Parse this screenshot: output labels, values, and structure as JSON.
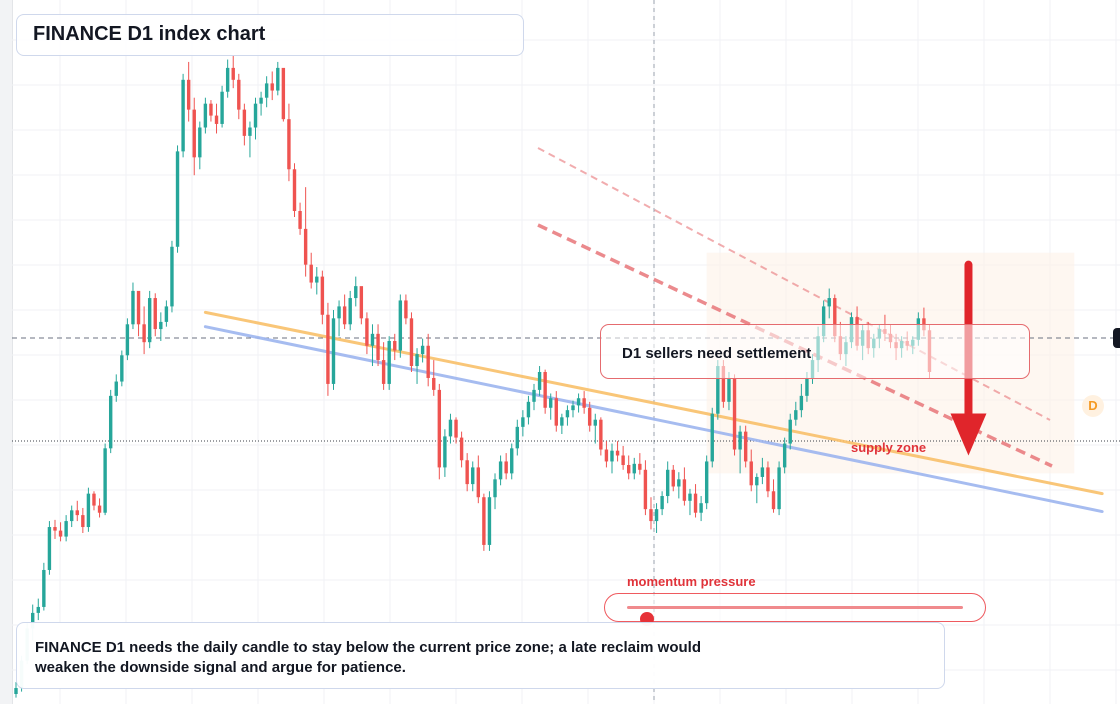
{
  "title": "FINANCE D1 index chart",
  "callout": "D1 sellers need settlement",
  "supply_label": "supply zone",
  "momentum": {
    "label": "momentum pressure",
    "level": 0.06
  },
  "badge": "D",
  "note": "FINANCE D1 needs the daily candle to stay below the current price zone; a late reclaim would weaken the downside signal and argue for patience.",
  "colors": {
    "up": "#26a69a",
    "down": "#ef5350",
    "trend_orange": "#f9c06a",
    "trend_blue": "#9db5ef",
    "dashed_red": "#e8767a",
    "arrow": "#e0252b"
  },
  "chart_data": {
    "type": "candlestick",
    "title": "FINANCE D1 index chart",
    "timeframe": "D1",
    "candles_ohlc": [
      [
        0.6,
        0.7,
        0.57,
        0.65
      ],
      [
        0.65,
        0.92,
        0.62,
        0.88
      ],
      [
        0.88,
        1.2,
        0.85,
        1.15
      ],
      [
        1.15,
        1.35,
        1.05,
        1.28
      ],
      [
        1.28,
        1.4,
        1.22,
        1.33
      ],
      [
        1.33,
        1.7,
        1.3,
        1.64
      ],
      [
        1.64,
        2.05,
        1.6,
        2.0
      ],
      [
        2.0,
        2.06,
        1.9,
        1.97
      ],
      [
        1.97,
        2.04,
        1.88,
        1.92
      ],
      [
        1.92,
        2.1,
        1.88,
        2.05
      ],
      [
        2.05,
        2.18,
        2.0,
        2.14
      ],
      [
        2.14,
        2.22,
        2.05,
        2.1
      ],
      [
        2.1,
        2.16,
        1.95,
        2.0
      ],
      [
        2.0,
        2.33,
        1.96,
        2.28
      ],
      [
        2.28,
        2.3,
        2.14,
        2.18
      ],
      [
        2.18,
        2.24,
        2.08,
        2.12
      ],
      [
        2.12,
        2.7,
        2.1,
        2.66
      ],
      [
        2.66,
        3.15,
        2.62,
        3.1
      ],
      [
        3.1,
        3.28,
        3.05,
        3.22
      ],
      [
        3.22,
        3.48,
        3.18,
        3.44
      ],
      [
        3.44,
        3.75,
        3.4,
        3.7
      ],
      [
        3.7,
        4.05,
        3.66,
        3.98
      ],
      [
        3.98,
        3.92,
        3.6,
        3.7
      ],
      [
        3.7,
        3.85,
        3.45,
        3.55
      ],
      [
        3.55,
        3.98,
        3.5,
        3.92
      ],
      [
        3.92,
        3.96,
        3.6,
        3.66
      ],
      [
        3.66,
        3.8,
        3.56,
        3.72
      ],
      [
        3.72,
        3.9,
        3.68,
        3.85
      ],
      [
        3.85,
        4.4,
        3.8,
        4.35
      ],
      [
        4.35,
        5.2,
        4.3,
        5.15
      ],
      [
        5.15,
        5.8,
        5.1,
        5.75
      ],
      [
        5.75,
        5.9,
        5.4,
        5.5
      ],
      [
        5.5,
        5.6,
        4.95,
        5.1
      ],
      [
        5.1,
        5.4,
        5.0,
        5.35
      ],
      [
        5.35,
        5.6,
        5.3,
        5.55
      ],
      [
        5.55,
        5.58,
        5.4,
        5.45
      ],
      [
        5.45,
        5.55,
        5.3,
        5.38
      ],
      [
        5.38,
        5.7,
        5.35,
        5.65
      ],
      [
        5.65,
        5.92,
        5.6,
        5.85
      ],
      [
        5.85,
        5.95,
        5.68,
        5.75
      ],
      [
        5.75,
        5.8,
        5.42,
        5.5
      ],
      [
        5.5,
        5.55,
        5.2,
        5.28
      ],
      [
        5.28,
        5.4,
        5.1,
        5.35
      ],
      [
        5.35,
        5.6,
        5.25,
        5.55
      ],
      [
        5.55,
        5.65,
        5.45,
        5.6
      ],
      [
        5.6,
        5.78,
        5.52,
        5.72
      ],
      [
        5.72,
        5.82,
        5.58,
        5.66
      ],
      [
        5.66,
        5.9,
        5.62,
        5.85
      ],
      [
        5.85,
        5.8,
        5.4,
        5.42
      ],
      [
        5.42,
        5.55,
        4.9,
        5.0
      ],
      [
        5.0,
        5.05,
        4.6,
        4.65
      ],
      [
        4.65,
        4.72,
        4.45,
        4.5
      ],
      [
        4.5,
        4.85,
        4.1,
        4.2
      ],
      [
        4.2,
        4.3,
        4.0,
        4.05
      ],
      [
        4.05,
        4.18,
        3.95,
        4.1
      ],
      [
        4.1,
        4.15,
        3.7,
        3.78
      ],
      [
        3.78,
        3.88,
        3.1,
        3.2
      ],
      [
        3.2,
        3.82,
        3.15,
        3.75
      ],
      [
        3.75,
        3.9,
        3.6,
        3.85
      ],
      [
        3.85,
        3.95,
        3.66,
        3.7
      ],
      [
        3.7,
        3.98,
        3.65,
        3.92
      ],
      [
        3.92,
        4.1,
        3.85,
        4.02
      ],
      [
        4.02,
        4.0,
        3.7,
        3.75
      ],
      [
        3.75,
        3.8,
        3.45,
        3.52
      ],
      [
        3.52,
        3.7,
        3.35,
        3.62
      ],
      [
        3.62,
        3.7,
        3.35,
        3.4
      ],
      [
        3.4,
        3.55,
        3.15,
        3.2
      ],
      [
        3.2,
        3.6,
        3.15,
        3.56
      ],
      [
        3.56,
        3.62,
        3.4,
        3.48
      ],
      [
        3.48,
        3.95,
        3.42,
        3.9
      ],
      [
        3.9,
        3.95,
        3.7,
        3.75
      ],
      [
        3.75,
        3.8,
        3.3,
        3.35
      ],
      [
        3.35,
        3.5,
        3.2,
        3.45
      ],
      [
        3.45,
        3.58,
        3.38,
        3.52
      ],
      [
        3.52,
        3.62,
        3.18,
        3.25
      ],
      [
        3.25,
        3.4,
        3.1,
        3.15
      ],
      [
        3.15,
        3.2,
        2.4,
        2.5
      ],
      [
        2.5,
        2.82,
        2.42,
        2.76
      ],
      [
        2.76,
        2.95,
        2.7,
        2.9
      ],
      [
        2.9,
        2.92,
        2.7,
        2.75
      ],
      [
        2.75,
        2.8,
        2.5,
        2.56
      ],
      [
        2.56,
        2.62,
        2.3,
        2.36
      ],
      [
        2.36,
        2.55,
        2.3,
        2.5
      ],
      [
        2.5,
        2.6,
        2.2,
        2.25
      ],
      [
        2.25,
        2.28,
        1.8,
        1.85
      ],
      [
        1.85,
        2.3,
        1.8,
        2.25
      ],
      [
        2.25,
        2.45,
        2.15,
        2.4
      ],
      [
        2.4,
        2.6,
        2.35,
        2.55
      ],
      [
        2.55,
        2.62,
        2.4,
        2.45
      ],
      [
        2.45,
        2.7,
        2.4,
        2.66
      ],
      [
        2.66,
        2.9,
        2.6,
        2.84
      ],
      [
        2.84,
        2.98,
        2.76,
        2.92
      ],
      [
        2.92,
        3.1,
        2.86,
        3.05
      ],
      [
        3.05,
        3.2,
        2.98,
        3.15
      ],
      [
        3.15,
        3.35,
        3.1,
        3.3
      ],
      [
        3.3,
        3.32,
        2.95,
        3.0
      ],
      [
        3.0,
        3.12,
        2.9,
        3.08
      ],
      [
        3.08,
        3.14,
        2.8,
        2.85
      ],
      [
        2.85,
        2.95,
        2.78,
        2.92
      ],
      [
        2.92,
        3.02,
        2.85,
        2.98
      ],
      [
        2.98,
        3.06,
        2.92,
        3.02
      ],
      [
        3.02,
        3.12,
        2.96,
        3.08
      ],
      [
        3.08,
        3.14,
        2.95,
        3.0
      ],
      [
        3.0,
        3.05,
        2.8,
        2.85
      ],
      [
        2.85,
        2.95,
        2.7,
        2.9
      ],
      [
        2.9,
        2.92,
        2.6,
        2.65
      ],
      [
        2.65,
        2.72,
        2.5,
        2.55
      ],
      [
        2.55,
        2.7,
        2.45,
        2.64
      ],
      [
        2.64,
        2.72,
        2.55,
        2.6
      ],
      [
        2.6,
        2.68,
        2.48,
        2.52
      ],
      [
        2.52,
        2.6,
        2.4,
        2.45
      ],
      [
        2.45,
        2.58,
        2.4,
        2.53
      ],
      [
        2.53,
        2.62,
        2.44,
        2.48
      ],
      [
        2.48,
        2.56,
        2.1,
        2.15
      ],
      [
        2.15,
        2.25,
        1.98,
        2.05
      ],
      [
        2.05,
        2.2,
        1.95,
        2.15
      ],
      [
        2.15,
        2.3,
        2.1,
        2.26
      ],
      [
        2.26,
        2.55,
        2.2,
        2.48
      ],
      [
        2.48,
        2.52,
        2.3,
        2.34
      ],
      [
        2.34,
        2.46,
        2.24,
        2.4
      ],
      [
        2.4,
        2.5,
        2.18,
        2.22
      ],
      [
        2.22,
        2.32,
        2.1,
        2.28
      ],
      [
        2.28,
        2.36,
        2.08,
        2.12
      ],
      [
        2.12,
        2.26,
        2.05,
        2.2
      ],
      [
        2.2,
        2.6,
        2.15,
        2.55
      ],
      [
        2.55,
        3.0,
        2.5,
        2.95
      ],
      [
        2.95,
        3.4,
        2.9,
        3.35
      ],
      [
        3.35,
        3.4,
        3.0,
        3.05
      ],
      [
        3.05,
        3.3,
        2.98,
        3.25
      ],
      [
        3.25,
        3.28,
        2.6,
        2.65
      ],
      [
        2.65,
        2.85,
        2.45,
        2.8
      ],
      [
        2.8,
        2.85,
        2.5,
        2.55
      ],
      [
        2.55,
        2.65,
        2.3,
        2.35
      ],
      [
        2.35,
        2.45,
        2.2,
        2.42
      ],
      [
        2.42,
        2.58,
        2.36,
        2.5
      ],
      [
        2.5,
        2.55,
        2.25,
        2.3
      ],
      [
        2.3,
        2.4,
        2.12,
        2.15
      ],
      [
        2.15,
        2.55,
        2.1,
        2.5
      ],
      [
        2.5,
        2.75,
        2.45,
        2.7
      ],
      [
        2.7,
        2.95,
        2.65,
        2.9
      ],
      [
        2.9,
        3.05,
        2.85,
        2.98
      ],
      [
        2.98,
        3.2,
        2.92,
        3.1
      ],
      [
        3.1,
        3.3,
        3.05,
        3.25
      ],
      [
        3.25,
        3.45,
        3.2,
        3.4
      ],
      [
        3.4,
        3.68,
        3.3,
        3.6
      ],
      [
        3.6,
        3.9,
        3.55,
        3.85
      ],
      [
        3.85,
        4.0,
        3.75,
        3.92
      ],
      [
        3.92,
        3.95,
        3.55,
        3.6
      ],
      [
        3.6,
        3.72,
        3.4,
        3.45
      ],
      [
        3.45,
        3.6,
        3.35,
        3.55
      ],
      [
        3.55,
        3.8,
        3.5,
        3.76
      ],
      [
        3.76,
        3.85,
        3.48,
        3.52
      ],
      [
        3.52,
        3.7,
        3.4,
        3.65
      ],
      [
        3.65,
        3.72,
        3.45,
        3.5
      ],
      [
        3.5,
        3.62,
        3.42,
        3.58
      ],
      [
        3.58,
        3.7,
        3.5,
        3.66
      ],
      [
        3.66,
        3.78,
        3.56,
        3.62
      ],
      [
        3.62,
        3.7,
        3.5,
        3.55
      ],
      [
        3.55,
        3.62,
        3.4,
        3.5
      ],
      [
        3.5,
        3.6,
        3.42,
        3.56
      ],
      [
        3.56,
        3.64,
        3.48,
        3.52
      ],
      [
        3.52,
        3.6,
        3.45,
        3.57
      ],
      [
        3.57,
        3.8,
        3.52,
        3.75
      ],
      [
        3.75,
        3.84,
        3.6,
        3.65
      ],
      [
        3.65,
        3.7,
        3.25,
        3.3
      ]
    ],
    "trendlines": [
      {
        "color": "orange",
        "from": [
          34,
          3.8
        ],
        "to": [
          195,
          2.28
        ]
      },
      {
        "color": "blue",
        "from": [
          34,
          3.68
        ],
        "to": [
          195,
          2.13
        ]
      }
    ],
    "supply_zone": {
      "from_index": 124,
      "to_index": 190,
      "top": 4.3,
      "bottom": 2.45
    },
    "supply_arrow": {
      "index": 171,
      "from": 4.2,
      "to": 2.7
    },
    "annotations": [
      "D1 sellers need settlement",
      "supply zone",
      "momentum pressure",
      "D"
    ],
    "current_price": 3.55,
    "grid": true,
    "ylim": [
      0.6,
      6.0
    ]
  }
}
